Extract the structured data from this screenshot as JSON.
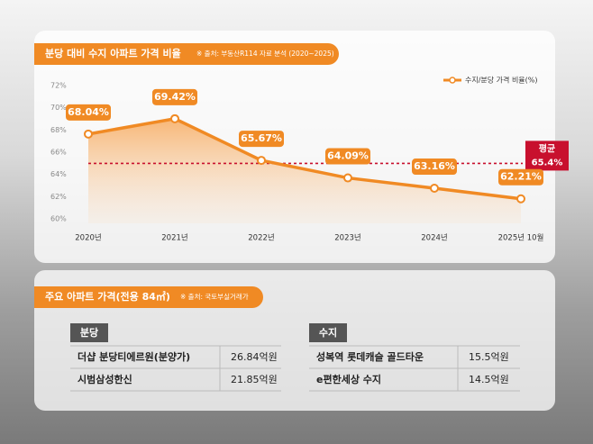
{
  "chart_data": {
    "type": "line",
    "title": "분당 대비 수지 아파트 가격 비율",
    "source": "※ 출처: 부동산R114 자료 분석 (2020~2025)",
    "categories": [
      "2020년",
      "2021년",
      "2022년",
      "2023년",
      "2024년",
      "2025년 10월"
    ],
    "series": [
      {
        "name": "수지/분당 가격 비율(%)",
        "color": "#f08a24",
        "values": [
          68.04,
          69.42,
          65.67,
          64.09,
          63.16,
          62.21
        ],
        "value_labels": [
          "68.04%",
          "69.42%",
          "65.67%",
          "64.09%",
          "63.16%",
          "62.21%"
        ]
      }
    ],
    "ylim": [
      60,
      72
    ],
    "yticks": [
      {
        "value": 60,
        "label": "60%"
      },
      {
        "value": 62,
        "label": "62%"
      },
      {
        "value": 64,
        "label": "64%"
      },
      {
        "value": 66,
        "label": "66%"
      },
      {
        "value": 68,
        "label": "68%"
      },
      {
        "value": 70,
        "label": "70%"
      },
      {
        "value": 72,
        "label": "72%"
      }
    ],
    "average": {
      "label": "평균",
      "value": 65.4,
      "value_label": "65.4%",
      "color": "#c8102e"
    },
    "legend": "top-right"
  },
  "table_section": {
    "title": "주요 아파트 가격(전용 84㎡)",
    "source": "※ 출처: 국토부실거래가",
    "groups": [
      {
        "name": "분당",
        "rows": [
          [
            "더샵 분당티에르원(분양가)",
            "26.84억원"
          ],
          [
            "시범삼성한신",
            "21.85억원"
          ]
        ]
      },
      {
        "name": "수지",
        "rows": [
          [
            "성복역 롯데캐슬 골드타운",
            "15.5억원"
          ],
          [
            "e편한세상 수지",
            "14.5억원"
          ]
        ]
      }
    ]
  }
}
